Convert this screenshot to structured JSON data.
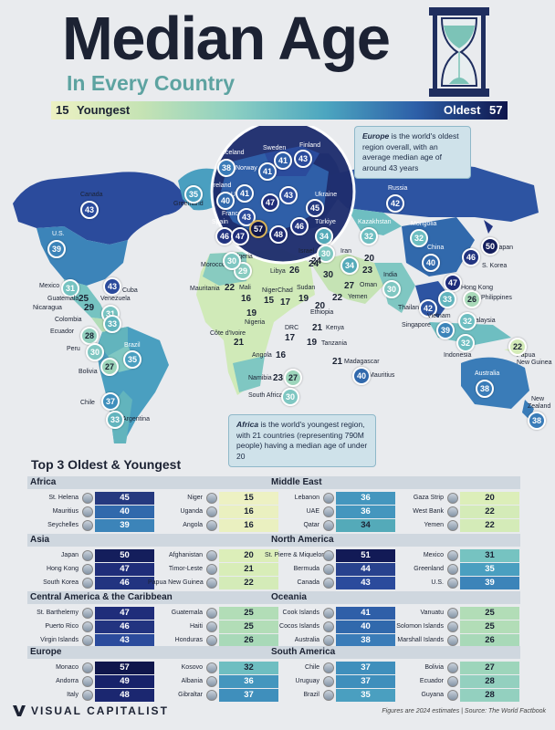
{
  "header": {
    "title": "Median Age",
    "subtitle": "In Every Country"
  },
  "scale": {
    "min_value": "15",
    "min_label": "Youngest",
    "max_label": "Oldest",
    "max_value": "57",
    "colors": [
      "#edf1c3",
      "#c5e3b4",
      "#8ccfc2",
      "#4ca6c0",
      "#2d5fa8",
      "#0f164c"
    ]
  },
  "callouts": {
    "europe": {
      "bold": "Europe",
      "text": "is the world's oldest region overall, with an average median age of around 43 years"
    },
    "africa": {
      "bold": "Africa",
      "text": "is the world's youngest region, with 21 countries (representing 790M people) having a median age of under 20"
    }
  },
  "map_markers": [
    {
      "name": "Canada",
      "value": "43",
      "color": "#2b4b9c"
    },
    {
      "name": "U.S.",
      "value": "39",
      "color": "#3c84b9"
    },
    {
      "name": "Greenland",
      "value": "35",
      "color": "#4a9fc0"
    },
    {
      "name": "Iceland",
      "value": "38",
      "color": "#3a7cb8"
    },
    {
      "name": "Sweden",
      "value": "41",
      "color": "#2f5fa8"
    },
    {
      "name": "Finland",
      "value": "43",
      "color": "#2b4b9c"
    },
    {
      "name": "Norway",
      "value": "41",
      "color": "#2f5fa8"
    },
    {
      "name": "Ireland",
      "value": "40",
      "color": "#3169ac"
    },
    {
      "name": "UK",
      "value": "41",
      "color": "#2f5fa8"
    },
    {
      "name": "Germany",
      "value": "47",
      "color": "#1f2d7a"
    },
    {
      "name": "Poland",
      "value": "43",
      "color": "#2b4b9c"
    },
    {
      "name": "Ukraine",
      "value": "45",
      "color": "#25397f"
    },
    {
      "name": "France",
      "value": "43",
      "color": "#2b4b9c"
    },
    {
      "name": "Spain",
      "value": "46",
      "color": "#223480"
    },
    {
      "name": "Portugal",
      "value": "47",
      "color": "#1f2d7a"
    },
    {
      "name": "Monaco",
      "value": "57",
      "color": "#0f164c"
    },
    {
      "name": "Italy",
      "value": "48",
      "color": "#1b2770"
    },
    {
      "name": "Greece",
      "value": "46",
      "color": "#223480"
    },
    {
      "name": "Türkiye",
      "value": "34",
      "color": "#54aab9"
    },
    {
      "name": "Russia",
      "value": "42",
      "color": "#2d54a2"
    },
    {
      "name": "Kazakhstan",
      "value": "32",
      "color": "#6ebec1"
    },
    {
      "name": "Mongolia",
      "value": "32",
      "color": "#6ebec1"
    },
    {
      "name": "China",
      "value": "40",
      "color": "#3169ac"
    },
    {
      "name": "Japan",
      "value": "50",
      "color": "#141e5c"
    },
    {
      "name": "S. Korea",
      "value": "46",
      "color": "#223480"
    },
    {
      "name": "Hong Kong",
      "value": "47",
      "color": "#1f2d7a"
    },
    {
      "name": "Thailand",
      "value": "42",
      "color": "#2d54a2"
    },
    {
      "name": "Vietnam",
      "value": "33",
      "color": "#62b4bd"
    },
    {
      "name": "Philippines",
      "value": "26",
      "color": "#a8d9b8"
    },
    {
      "name": "Malaysia",
      "value": "32",
      "color": "#6ebec1"
    },
    {
      "name": "Singapore",
      "value": "39",
      "color": "#3c84b9"
    },
    {
      "name": "Indonesia",
      "value": "32",
      "color": "#6ebec1"
    },
    {
      "name": "Papua New Guinea",
      "value": "22",
      "color": "#d4ebb8"
    },
    {
      "name": "Australia",
      "value": "38",
      "color": "#3a7cb8"
    },
    {
      "name": "New Zealand",
      "value": "38",
      "color": "#3a7cb8"
    },
    {
      "name": "Iran",
      "value": "34",
      "color": "#54aab9"
    },
    {
      "name": "Israel",
      "value": "30",
      "color": "#7fc7c2"
    },
    {
      "name": "India",
      "value": "30",
      "color": "#7fc7c2"
    },
    {
      "name": "Cuba",
      "value": "43",
      "color": "#2b4b9c"
    },
    {
      "name": "Mexico",
      "value": "31",
      "color": "#76c3c1"
    },
    {
      "name": "Venezuela",
      "value": "31",
      "color": "#76c3c1"
    },
    {
      "name": "Colombia",
      "value": "33",
      "color": "#62b4bd"
    },
    {
      "name": "Ecuador",
      "value": "28",
      "color": "#93d0bf"
    },
    {
      "name": "Peru",
      "value": "30",
      "color": "#7fc7c2"
    },
    {
      "name": "Brazil",
      "value": "35",
      "color": "#4a9fc0"
    },
    {
      "name": "Bolivia",
      "value": "27",
      "color": "#9dd5bb"
    },
    {
      "name": "Chile",
      "value": "37",
      "color": "#3f8fbc"
    },
    {
      "name": "Argentina",
      "value": "33",
      "color": "#62b4bd"
    },
    {
      "name": "Algeria",
      "value": "29",
      "color": "#88cbc0"
    },
    {
      "name": "Morocco",
      "value": "30",
      "color": "#7fc7c2"
    },
    {
      "name": "Libya",
      "value": "26",
      "color": "#a8d9b8"
    },
    {
      "name": "Egypt",
      "value": "24",
      "color": "#bce2b6"
    },
    {
      "name": "South Africa",
      "value": "30",
      "color": "#7fc7c2"
    },
    {
      "name": "Namibia",
      "value": "27",
      "color": "#9dd5bb"
    },
    {
      "name": "Mauritius",
      "value": "40",
      "color": "#3169ac"
    }
  ],
  "map_numbers": [
    {
      "name": "Guatemala",
      "value": "25"
    },
    {
      "name": "Nicaragua",
      "value": "29"
    },
    {
      "name": "Mauritania",
      "value": "22"
    },
    {
      "name": "Mali",
      "value": "16"
    },
    {
      "name": "Niger",
      "value": "15"
    },
    {
      "name": "Chad",
      "value": "17"
    },
    {
      "name": "Sudan",
      "value": "19"
    },
    {
      "name": "Nigeria",
      "value": "19"
    },
    {
      "name": "Côte d'Ivoire",
      "value": "21"
    },
    {
      "name": "Ethiopia",
      "value": "20"
    },
    {
      "name": "DRC",
      "value": "17"
    },
    {
      "name": "Kenya",
      "value": "21"
    },
    {
      "name": "Tanzania",
      "value": "19"
    },
    {
      "name": "Angola",
      "value": "16"
    },
    {
      "name": "Madagascar",
      "value": "21"
    },
    {
      "name": "Oman",
      "value": "27"
    },
    {
      "name": "Yemen",
      "value": "22"
    },
    {
      "name": "Afghanistan",
      "value": "20"
    },
    {
      "name": "Pakistan",
      "value": "23"
    },
    {
      "name": "Saudi",
      "value": "30"
    },
    {
      "name": "Mozambique",
      "value": "23"
    },
    {
      "name": "Sahel",
      "value": "24"
    }
  ],
  "section_title": "Top 3 Oldest & Youngest",
  "regions": [
    {
      "name": "Africa",
      "oldest": [
        {
          "country": "St. Helena",
          "value": "45",
          "color": "#25397f"
        },
        {
          "country": "Mauritius",
          "value": "40",
          "color": "#3169ac"
        },
        {
          "country": "Seychelles",
          "value": "39",
          "color": "#3c84b9"
        }
      ],
      "youngest": [
        {
          "country": "Niger",
          "value": "15",
          "color": "#edf1c3"
        },
        {
          "country": "Uganda",
          "value": "16",
          "color": "#eaf0c0"
        },
        {
          "country": "Angola",
          "value": "16",
          "color": "#eaf0c0"
        }
      ]
    },
    {
      "name": "Middle East",
      "oldest": [
        {
          "country": "Lebanon",
          "value": "36",
          "color": "#4496be"
        },
        {
          "country": "UAE",
          "value": "36",
          "color": "#4496be"
        },
        {
          "country": "Qatar",
          "value": "34",
          "color": "#54aab9"
        }
      ],
      "youngest": [
        {
          "country": "Gaza Strip",
          "value": "20",
          "color": "#dceeb9"
        },
        {
          "country": "West Bank",
          "value": "22",
          "color": "#d4ebb8"
        },
        {
          "country": "Yemen",
          "value": "22",
          "color": "#d4ebb8"
        }
      ]
    },
    {
      "name": "Asia",
      "oldest": [
        {
          "country": "Japan",
          "value": "50",
          "color": "#141e5c"
        },
        {
          "country": "Hong Kong",
          "value": "47",
          "color": "#1f2d7a"
        },
        {
          "country": "South Korea",
          "value": "46",
          "color": "#223480"
        }
      ],
      "youngest": [
        {
          "country": "Afghanistan",
          "value": "20",
          "color": "#dceeb9"
        },
        {
          "country": "Timor-Leste",
          "value": "21",
          "color": "#d8edb8"
        },
        {
          "country": "Papua New Guinea",
          "value": "22",
          "color": "#d4ebb8"
        }
      ]
    },
    {
      "name": "North America",
      "oldest": [
        {
          "country": "St. Pierre & Miquelon",
          "value": "51",
          "color": "#121a56"
        },
        {
          "country": "Bermuda",
          "value": "44",
          "color": "#28428e"
        },
        {
          "country": "Canada",
          "value": "43",
          "color": "#2b4b9c"
        }
      ],
      "youngest": [
        {
          "country": "Mexico",
          "value": "31",
          "color": "#76c3c1"
        },
        {
          "country": "Greenland",
          "value": "35",
          "color": "#4a9fc0"
        },
        {
          "country": "U.S.",
          "value": "39",
          "color": "#3c84b9"
        }
      ]
    },
    {
      "name": "Central America & the Caribbean",
      "oldest": [
        {
          "country": "St. Barthelemy",
          "value": "47",
          "color": "#1f2d7a"
        },
        {
          "country": "Puerto Rico",
          "value": "46",
          "color": "#223480"
        },
        {
          "country": "Virgin Islands",
          "value": "43",
          "color": "#2b4b9c"
        }
      ],
      "youngest": [
        {
          "country": "Guatemala",
          "value": "25",
          "color": "#b2ddb7"
        },
        {
          "country": "Haiti",
          "value": "25",
          "color": "#b2ddb7"
        },
        {
          "country": "Honduras",
          "value": "26",
          "color": "#a8d9b8"
        }
      ]
    },
    {
      "name": "Oceania",
      "oldest": [
        {
          "country": "Cook Islands",
          "value": "41",
          "color": "#2f5fa8"
        },
        {
          "country": "Cocos Islands",
          "value": "40",
          "color": "#3169ac"
        },
        {
          "country": "Australia",
          "value": "38",
          "color": "#3a7cb8"
        }
      ],
      "youngest": [
        {
          "country": "Vanuatu",
          "value": "25",
          "color": "#b2ddb7"
        },
        {
          "country": "Solomon Islands",
          "value": "25",
          "color": "#b2ddb7"
        },
        {
          "country": "Marshall Islands",
          "value": "26",
          "color": "#a8d9b8"
        }
      ]
    },
    {
      "name": "Europe",
      "oldest": [
        {
          "country": "Monaco",
          "value": "57",
          "color": "#0f164c"
        },
        {
          "country": "Andorra",
          "value": "49",
          "color": "#17226a"
        },
        {
          "country": "Italy",
          "value": "48",
          "color": "#1b2770"
        }
      ],
      "youngest": [
        {
          "country": "Kosovo",
          "value": "32",
          "color": "#6ebec1"
        },
        {
          "country": "Albania",
          "value": "36",
          "color": "#4496be"
        },
        {
          "country": "Gibraltar",
          "value": "37",
          "color": "#3f8fbc"
        }
      ]
    },
    {
      "name": "South America",
      "oldest": [
        {
          "country": "Chile",
          "value": "37",
          "color": "#3f8fbc"
        },
        {
          "country": "Uruguay",
          "value": "37",
          "color": "#3f8fbc"
        },
        {
          "country": "Brazil",
          "value": "35",
          "color": "#4a9fc0"
        }
      ],
      "youngest": [
        {
          "country": "Bolivia",
          "value": "27",
          "color": "#9dd5bb"
        },
        {
          "country": "Ecuador",
          "value": "28",
          "color": "#93d0bf"
        },
        {
          "country": "Guyana",
          "value": "28",
          "color": "#93d0bf"
        }
      ]
    }
  ],
  "footer": {
    "brand": "VISUAL CAPITALIST",
    "note": "Figures are 2024 estimates  |  Source: The World Factbook"
  }
}
